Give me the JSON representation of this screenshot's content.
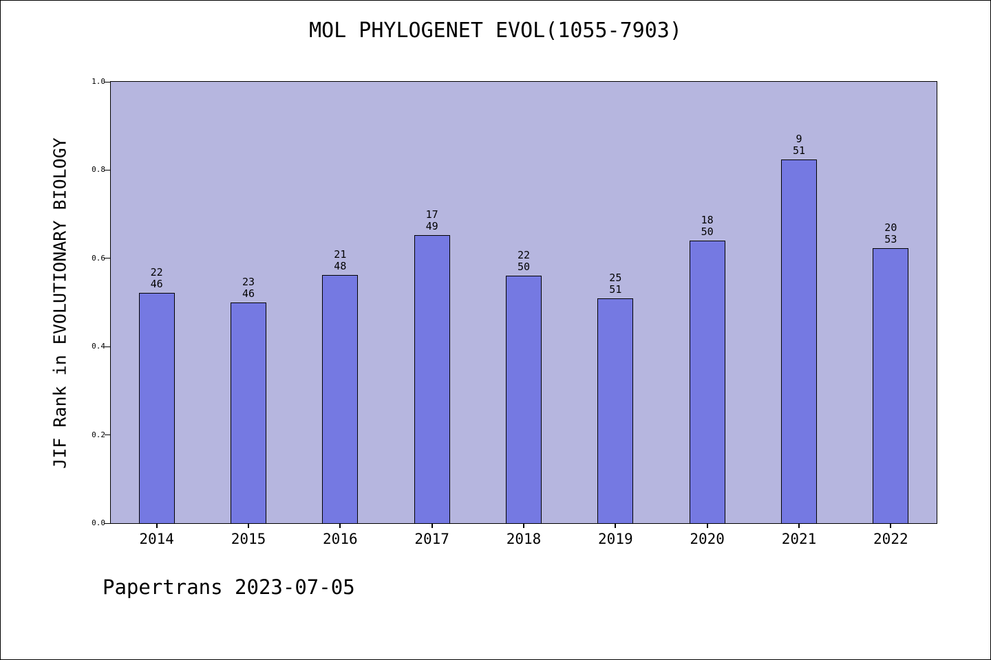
{
  "chart_data": {
    "type": "bar",
    "title": "MOL PHYLOGENET EVOL(1055-7903)",
    "ylabel": "JIF Rank in EVOLUTIONARY BIOLOGY",
    "xlabel": "",
    "footer": "Papertrans 2023-07-05",
    "ylim": [
      0.0,
      1.0
    ],
    "yticks": [
      0.0,
      0.2,
      0.4,
      0.6,
      0.8,
      1.0
    ],
    "ytick_labels": [
      "0.0",
      "0.2",
      "0.4",
      "0.6",
      "0.8",
      "1.0"
    ],
    "categories": [
      "2014",
      "2015",
      "2016",
      "2017",
      "2018",
      "2019",
      "2020",
      "2021",
      "2022"
    ],
    "grid": false,
    "legend": "none",
    "bars": [
      {
        "year": "2014",
        "label_top": "22",
        "label_bottom": "46",
        "value": 0.5217
      },
      {
        "year": "2015",
        "label_top": "23",
        "label_bottom": "46",
        "value": 0.5
      },
      {
        "year": "2016",
        "label_top": "21",
        "label_bottom": "48",
        "value": 0.5625
      },
      {
        "year": "2017",
        "label_top": "17",
        "label_bottom": "49",
        "value": 0.6531
      },
      {
        "year": "2018",
        "label_top": "22",
        "label_bottom": "50",
        "value": 0.56
      },
      {
        "year": "2019",
        "label_top": "25",
        "label_bottom": "51",
        "value": 0.5098
      },
      {
        "year": "2020",
        "label_top": "18",
        "label_bottom": "50",
        "value": 0.64
      },
      {
        "year": "2021",
        "label_top": "9",
        "label_bottom": "51",
        "value": 0.8235
      },
      {
        "year": "2022",
        "label_top": "20",
        "label_bottom": "53",
        "value": 0.6226
      }
    ],
    "colors": {
      "bar_fill": "#7579e2",
      "bar_edge": "#000000",
      "plot_background": "#b6b6df",
      "figure_background": "#ffffff",
      "text": "#000000"
    }
  }
}
